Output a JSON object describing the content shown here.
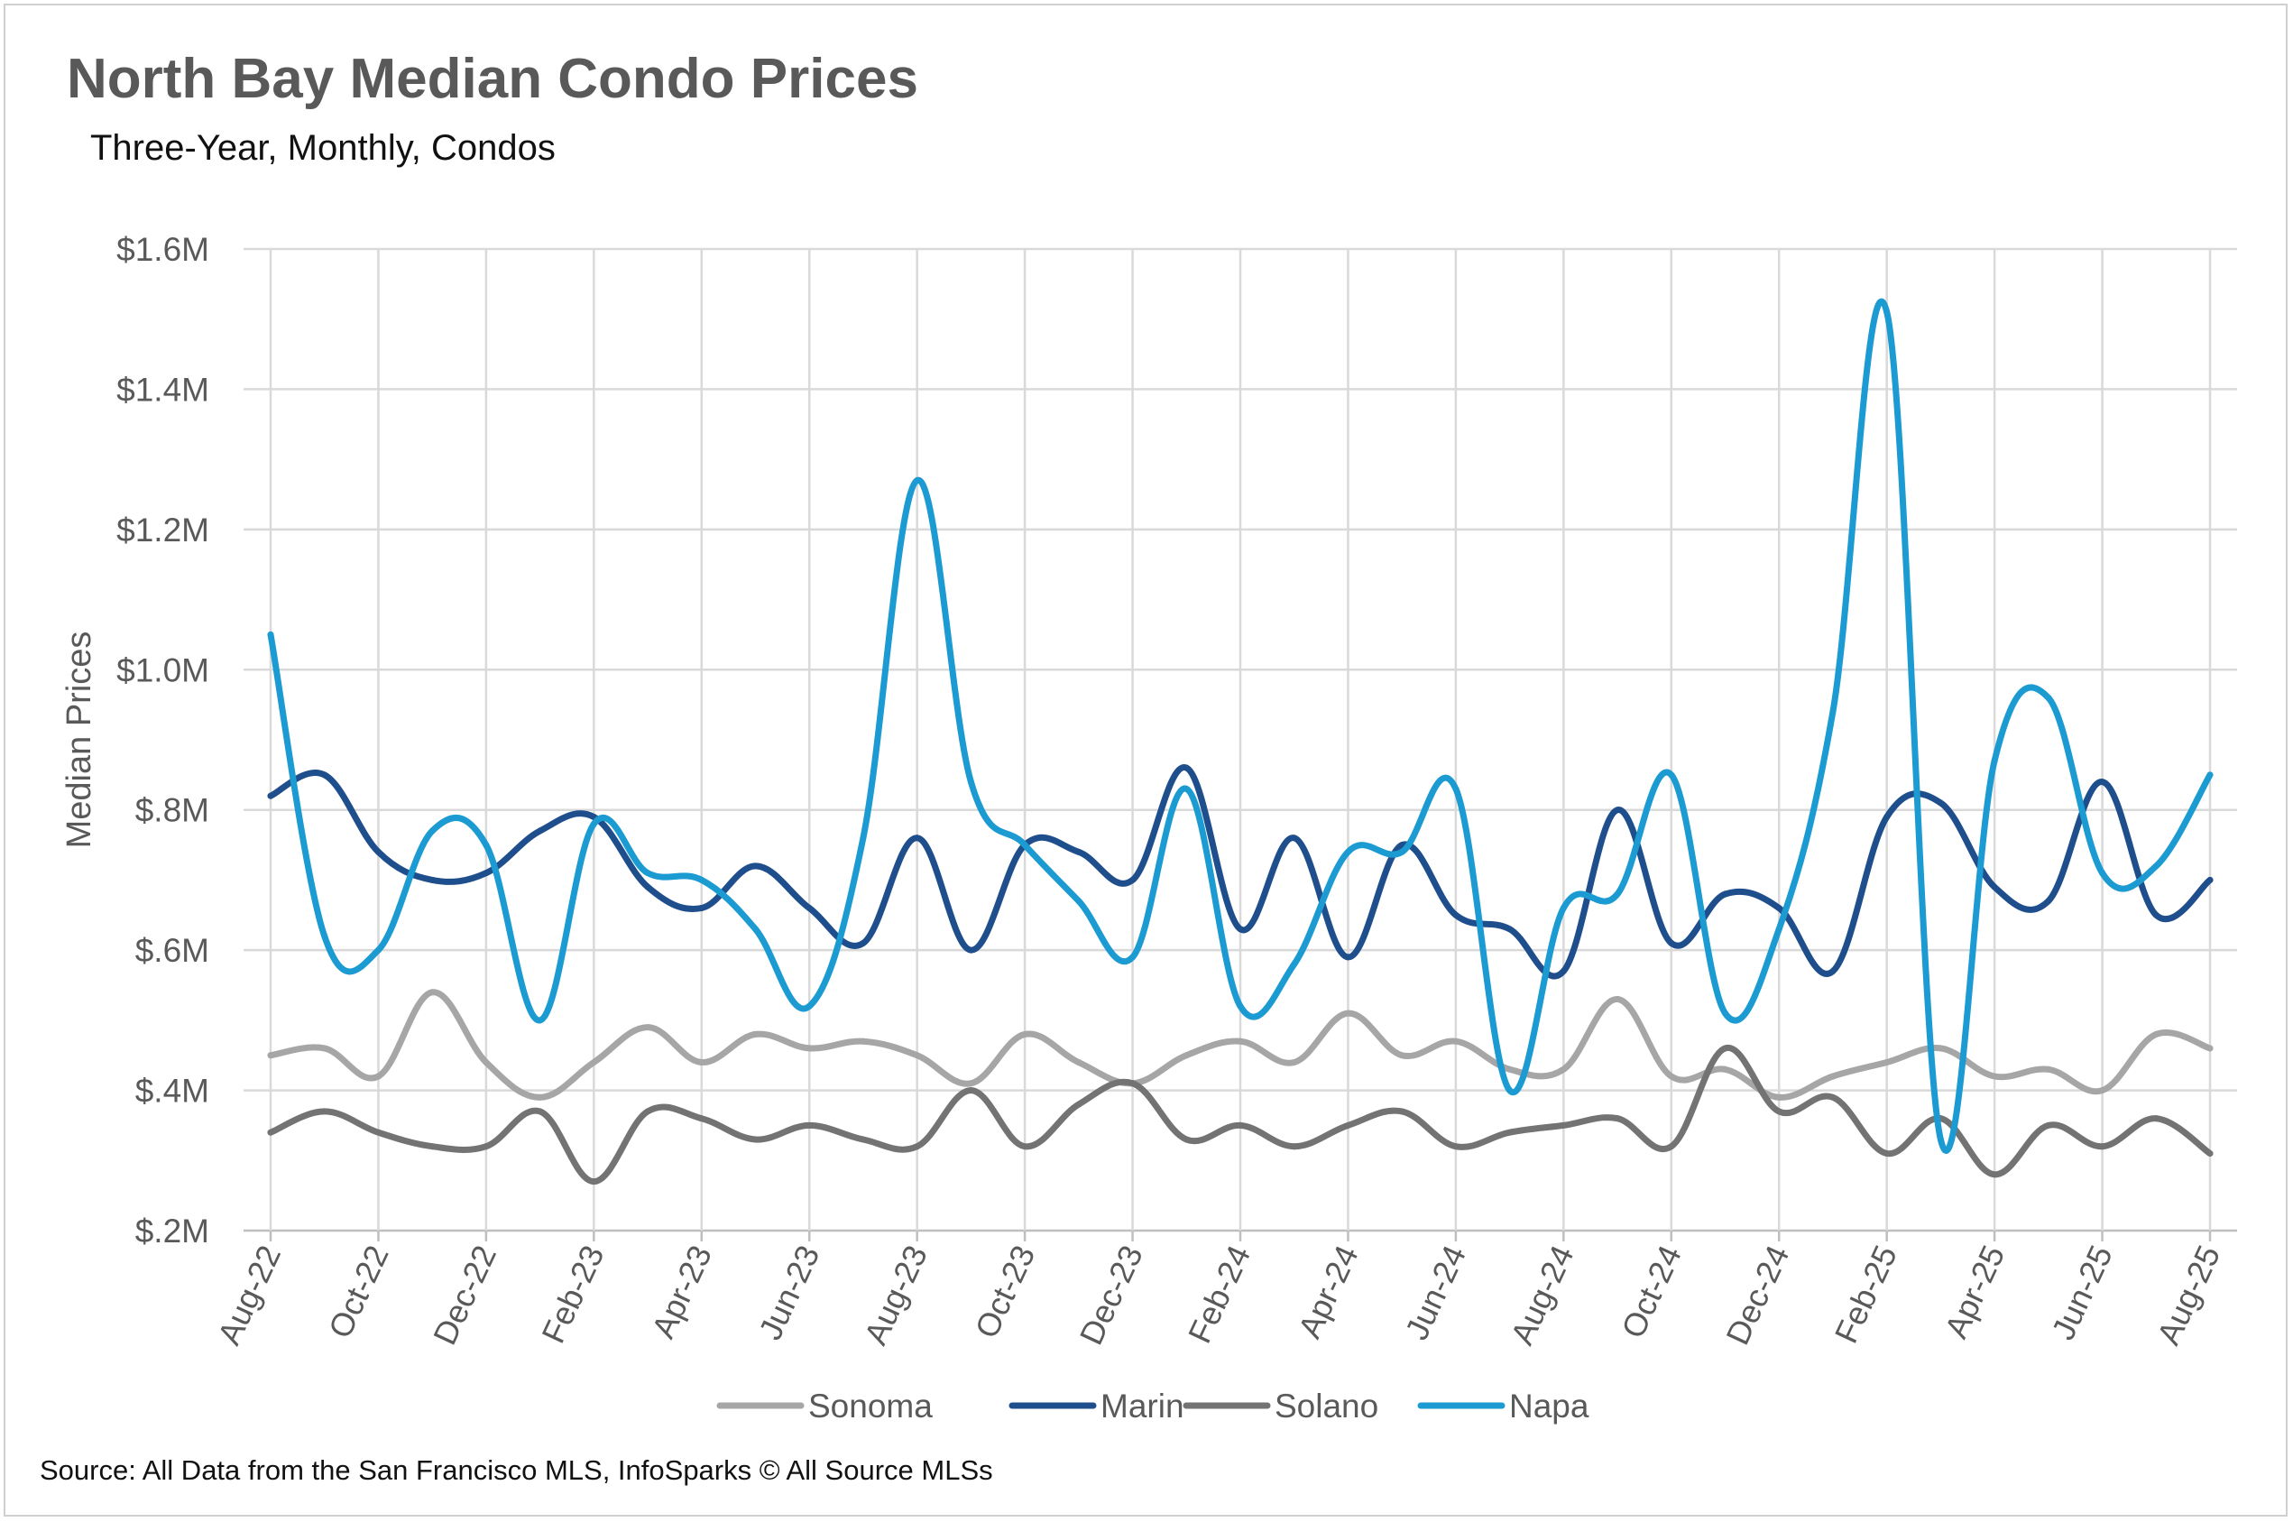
{
  "title": "North Bay Median Condo Prices",
  "subtitle": "Three-Year, Monthly, Condos",
  "source": "Source: All Data from the San Francisco MLS, InfoSparks © All Source MLSs",
  "chart_data": {
    "type": "line",
    "title": "North Bay Median Condo Prices",
    "subtitle": "Three-Year, Monthly, Condos",
    "xlabel": "",
    "ylabel": "Median Prices",
    "ylim": [
      0.2,
      1.6
    ],
    "y_unit": "$M",
    "y_ticks": [
      "$.2M",
      "$.4M",
      "$.6M",
      "$.8M",
      "$1.0M",
      "$1.2M",
      "$1.4M",
      "$1.6M"
    ],
    "x_tick_labels": [
      "Aug-22",
      "Oct-22",
      "Dec-22",
      "Feb-23",
      "Apr-23",
      "Jun-23",
      "Aug-23",
      "Oct-23",
      "Dec-23",
      "Feb-24",
      "Apr-24",
      "Jun-24",
      "Aug-24",
      "Oct-24",
      "Dec-24",
      "Feb-25",
      "Apr-25",
      "Jun-25",
      "Aug-25"
    ],
    "categories": [
      "Aug-22",
      "Sep-22",
      "Oct-22",
      "Nov-22",
      "Dec-22",
      "Jan-23",
      "Feb-23",
      "Mar-23",
      "Apr-23",
      "May-23",
      "Jun-23",
      "Jul-23",
      "Aug-23",
      "Sep-23",
      "Oct-23",
      "Nov-23",
      "Dec-23",
      "Jan-24",
      "Feb-24",
      "Mar-24",
      "Apr-24",
      "May-24",
      "Jun-24",
      "Jul-24",
      "Aug-24",
      "Sep-24",
      "Oct-24",
      "Nov-24",
      "Dec-24",
      "Jan-25",
      "Feb-25",
      "Mar-25",
      "Apr-25",
      "May-25",
      "Jun-25",
      "Jul-25",
      "Aug-25"
    ],
    "grid": true,
    "legend_position": "bottom",
    "series": [
      {
        "name": "Sonoma",
        "color": "#a6a6a6",
        "values": [
          0.45,
          0.46,
          0.42,
          0.54,
          0.44,
          0.39,
          0.44,
          0.49,
          0.44,
          0.48,
          0.46,
          0.47,
          0.45,
          0.41,
          0.48,
          0.44,
          0.41,
          0.45,
          0.47,
          0.44,
          0.51,
          0.45,
          0.47,
          0.43,
          0.43,
          0.53,
          0.42,
          0.43,
          0.39,
          0.42,
          0.44,
          0.46,
          0.42,
          0.43,
          0.4,
          0.48,
          0.46
        ]
      },
      {
        "name": "Marin",
        "color": "#1f4e8c",
        "values": [
          0.82,
          0.85,
          0.74,
          0.7,
          0.71,
          0.77,
          0.79,
          0.69,
          0.66,
          0.72,
          0.66,
          0.61,
          0.76,
          0.6,
          0.75,
          0.74,
          0.7,
          0.86,
          0.63,
          0.76,
          0.59,
          0.75,
          0.65,
          0.63,
          0.57,
          0.8,
          0.61,
          0.68,
          0.66,
          0.57,
          0.79,
          0.81,
          0.69,
          0.67,
          0.84,
          0.65,
          0.7
        ]
      },
      {
        "name": "Solano",
        "color": "#737373",
        "values": [
          0.34,
          0.37,
          0.34,
          0.32,
          0.32,
          0.37,
          0.27,
          0.37,
          0.36,
          0.33,
          0.35,
          0.33,
          0.32,
          0.4,
          0.32,
          0.38,
          0.41,
          0.33,
          0.35,
          0.32,
          0.35,
          0.37,
          0.32,
          0.34,
          0.35,
          0.36,
          0.32,
          0.46,
          0.37,
          0.39,
          0.31,
          0.36,
          0.28,
          0.35,
          0.32,
          0.36,
          0.31
        ]
      },
      {
        "name": "Napa",
        "color": "#1b9bd1",
        "values": [
          1.05,
          0.62,
          0.6,
          0.77,
          0.75,
          0.5,
          0.78,
          0.71,
          0.7,
          0.63,
          0.52,
          0.76,
          1.27,
          0.84,
          0.75,
          0.67,
          0.59,
          0.83,
          0.52,
          0.58,
          0.74,
          0.74,
          0.83,
          0.4,
          0.66,
          0.68,
          0.85,
          0.51,
          0.63,
          0.94,
          1.51,
          0.33,
          0.87,
          0.96,
          0.71,
          0.72,
          0.85
        ]
      }
    ]
  }
}
